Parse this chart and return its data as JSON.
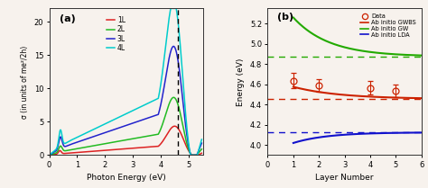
{
  "panel_a": {
    "title": "(a)",
    "xlabel": "Photon Energy (eV)",
    "ylabel": "σ (in units of me²/2h)",
    "xlim": [
      0,
      5.5
    ],
    "ylim": [
      0,
      22
    ],
    "yticks": [
      0,
      5,
      10,
      15,
      20
    ],
    "xticks": [
      0,
      1,
      2,
      3,
      4,
      5
    ],
    "dashed_x": 4.6,
    "color_1L": "#dd2222",
    "color_2L": "#22bb22",
    "color_3L": "#2222cc",
    "color_4L": "#00cccc"
  },
  "panel_b": {
    "title": "(b)",
    "xlabel": "Layer Number",
    "ylabel": "Energy (eV)",
    "xlim": [
      0,
      6
    ],
    "ylim": [
      3.9,
      5.35
    ],
    "xticks": [
      0,
      1,
      2,
      3,
      4,
      5,
      6
    ],
    "yticks": [
      4.0,
      4.2,
      4.4,
      4.6,
      4.8,
      5.0,
      5.2
    ],
    "data_points_x": [
      1,
      2,
      4,
      5
    ],
    "data_points_y": [
      4.635,
      4.59,
      4.565,
      4.535
    ],
    "data_errors": [
      0.075,
      0.065,
      0.065,
      0.065
    ],
    "gwbs_color": "#cc2200",
    "gw_color": "#22aa00",
    "lda_color": "#1111cc",
    "dashed_gwbs_y": 4.455,
    "dashed_gw_y": 4.875,
    "dashed_lda_y": 4.125,
    "gwbs_start": 4.575,
    "gw_start": 5.26,
    "lda_start": 4.02
  },
  "background_color": "#f7f2ed"
}
